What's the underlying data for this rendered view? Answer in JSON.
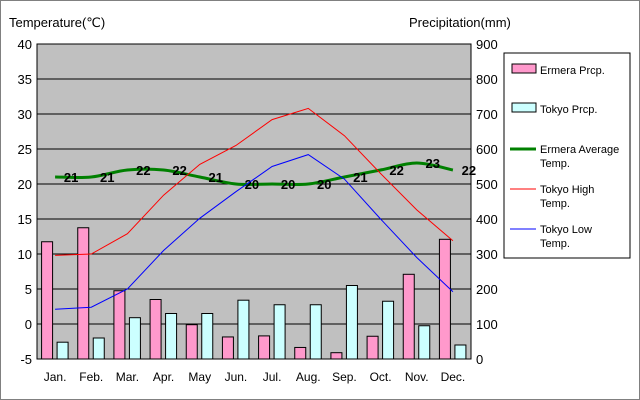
{
  "chart_data": {
    "type": "bar-line-combo",
    "left_axis_title": "Temperature(℃)",
    "right_axis_title": "Precipitation(mm)",
    "left_axis": {
      "min": -5,
      "max": 40,
      "ticks": [
        "-5",
        "0",
        "5",
        "10",
        "15",
        "20",
        "25",
        "30",
        "35",
        "40"
      ]
    },
    "right_axis": {
      "min": 0,
      "max": 900,
      "ticks": [
        "0",
        "100",
        "200",
        "300",
        "400",
        "500",
        "600",
        "700",
        "800",
        "900"
      ]
    },
    "categories": [
      "Jan.",
      "Feb.",
      "Mar.",
      "Apr.",
      "May",
      "Jun.",
      "Jul.",
      "Aug.",
      "Sep.",
      "Oct.",
      "Nov.",
      "Dec."
    ],
    "series": [
      {
        "name": "Ermera Prcp.",
        "kind": "bar",
        "axis": "right",
        "color": "#ff99cc",
        "values": [
          335,
          375,
          195,
          170,
          98,
          63,
          66,
          33,
          18,
          65,
          242,
          342
        ]
      },
      {
        "name": "Tokyo Prcp.",
        "kind": "bar",
        "axis": "right",
        "color": "#ccffff",
        "values": [
          48,
          60,
          118,
          130,
          130,
          168,
          155,
          155,
          210,
          165,
          95,
          40
        ]
      },
      {
        "name": "Ermera Average Temp.",
        "kind": "line",
        "axis": "left",
        "color": "#008000",
        "values": [
          21,
          21,
          22,
          22,
          21,
          20,
          20,
          20,
          21,
          22,
          23,
          22
        ],
        "data_labels": [
          "21",
          "21",
          "22",
          "22",
          "21",
          "20",
          "20",
          "20",
          "21",
          "22",
          "23",
          "22"
        ]
      },
      {
        "name": "Tokyo High Temp.",
        "kind": "line",
        "axis": "left",
        "color": "#ff0000",
        "values": [
          9.8,
          10,
          12.9,
          18.4,
          22.8,
          25.5,
          29.2,
          30.8,
          26.9,
          21.5,
          16.3,
          11.9
        ]
      },
      {
        "name": "Tokyo Low Temp.",
        "kind": "line",
        "axis": "left",
        "color": "#0000ff",
        "values": [
          2.1,
          2.4,
          5,
          10.5,
          15.1,
          18.9,
          22.5,
          24.2,
          20.7,
          15,
          9.5,
          4.6
        ]
      }
    ],
    "legend_position": "right",
    "grid": "horizontal"
  },
  "colors": {
    "plot_bg": "#c0c0c0",
    "grid": "#000000",
    "bar_outline": "#000000"
  }
}
